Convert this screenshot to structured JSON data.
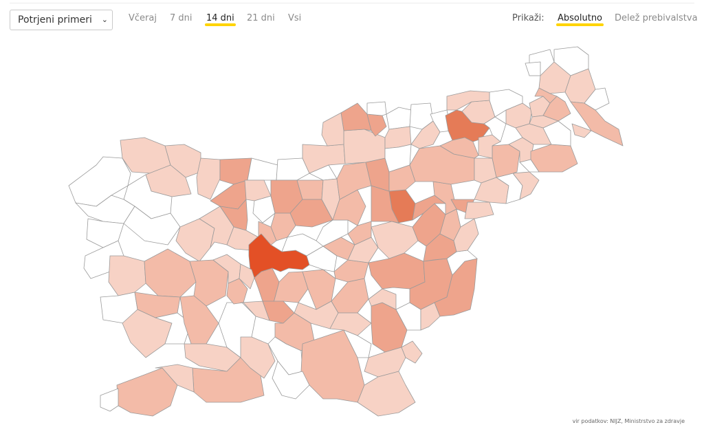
{
  "toolbar": {
    "metric_select": "Potrjeni primeri",
    "period_tabs": [
      "Včeraj",
      "7 dni",
      "14 dni",
      "21 dni",
      "Vsi"
    ],
    "active_period": "14 dni",
    "show_label": "Prikaži:",
    "show_options": [
      "Absolutno",
      "Delež prebivalstva"
    ],
    "active_show": "Absolutno"
  },
  "colors": {
    "accent_underline": "#ffd400",
    "scale": [
      "#ffffff",
      "#f7d2c5",
      "#f3bba8",
      "#eea48c",
      "#e57b57",
      "#e35026"
    ],
    "border": "#9a9a9a"
  },
  "source": "vir podatkov: NIJZ, Ministrstvo za zdravje"
}
